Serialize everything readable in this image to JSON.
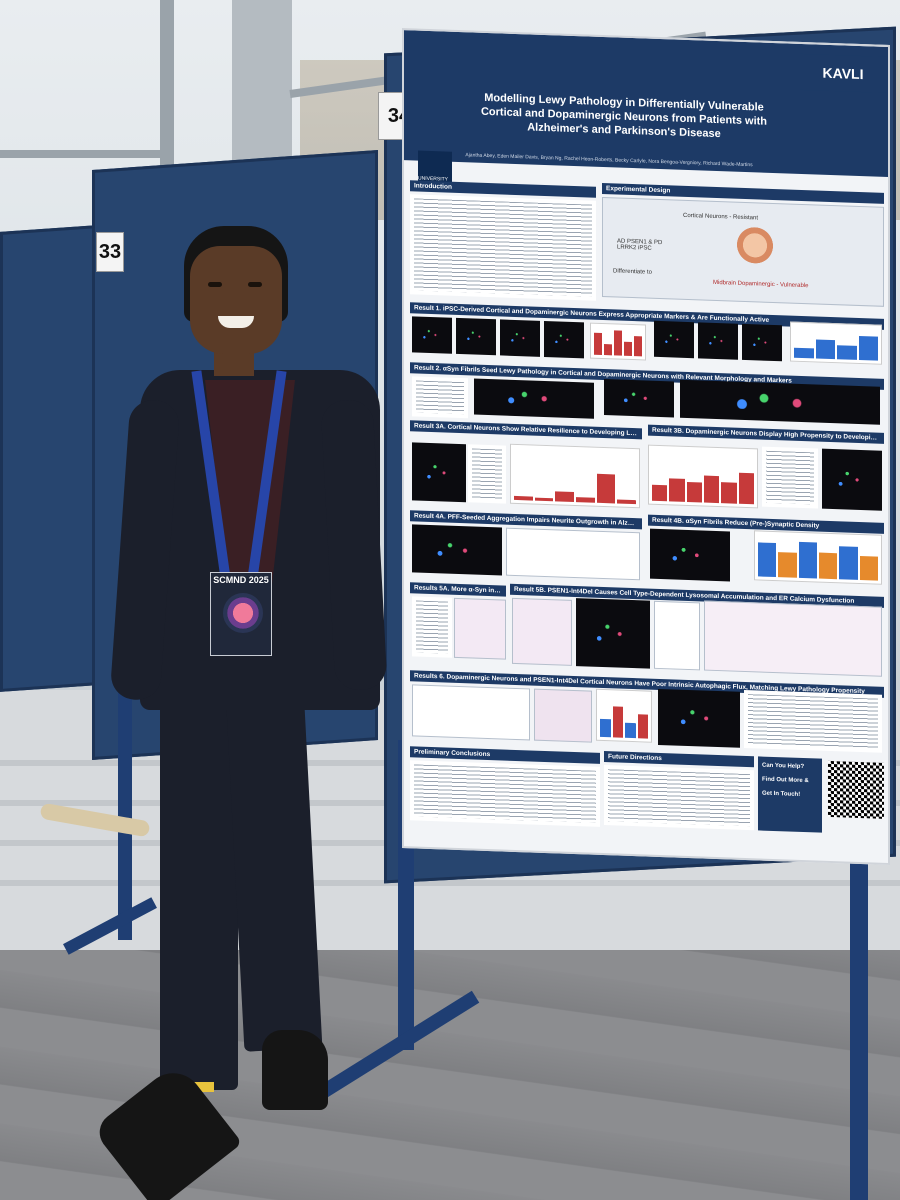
{
  "scene": {
    "board_numbers": [
      "33",
      "34"
    ]
  },
  "poster": {
    "institution_logo": "UNIVERSITY OF OXFORD",
    "kavli_logo": "KAVLI",
    "title": "Modelling Lewy Pathology in Differentially Vulnerable Cortical and Dopaminergic Neurons from Patients with Alzheimer's and Parkinson's Disease",
    "authors": "Ajantha Abey, Eden Mailer Davis, Bryan Ng, Rachel Heon-Roberts, Becky Carlyle, Nora Bengoa-Vergniory, Richard Wade-Martins",
    "sections": {
      "introduction": "Introduction",
      "experimental_design": "Experimental Design",
      "result1": "Result 1. iPSC-Derived Cortical and Dopaminergic Neurons Express Appropriate Markers & Are Functionally Active",
      "result2": "Result 2. αSyn Fibrils Seed Lewy Pathology in Cortical and Dopaminergic Neurons with Relevant Morphology and Markers",
      "result3a": "Result 3A. Cortical Neurons Show Relative Resilience to Developing Lewy Pathology Following αSyn Fibril Insult, Except for PSEN1-Int4Del",
      "result3b": "Result 3B. Dopaminergic Neurons Display High Propensity to Developing Lewy Pathology Following αSyn Fibril Insult",
      "result4a": "Result 4A. PFF-Seeded Aggregation Impairs Neurite Outgrowth in Alzheimer's Neurons",
      "result4b": "Result 4B. αSyn Fibrils Reduce (Pre-)Synaptic Density",
      "result5a": "Results 5A. More α-Syn in Dopaminergic vs Cortical Neurons",
      "result5b": "Result 5B. PSEN1-Int4Del Causes Cell Type-Dependent Lysosomal Accumulation and ER Calcium Dysfunction",
      "result6": "Results 6. Dopaminergic Neurons and PSEN1-Int4Del Cortical Neurons Have Poor Intrinsic Autophagic Flux, Matching Lewy Pathology Propensity",
      "preliminary_conclusions": "Preliminary Conclusions",
      "future_directions": "Future Directions",
      "contact": "Can You Help? Find Out More & Get In Touch!"
    },
    "design_labels": {
      "cortical": "Cortical Neurons - Resistant",
      "midbrain": "Midbrain Dopaminergic - Vulnerable",
      "psen1": "AD PSEN1 & PD LRRK2 iPSC",
      "differentiate": "Differentiate to"
    }
  },
  "person": {
    "badge_text": "SCMND 2025"
  },
  "colors": {
    "board_blue": "#27456f",
    "poster_navy": "#1d3a66",
    "lanyard_blue": "#2745a8"
  }
}
